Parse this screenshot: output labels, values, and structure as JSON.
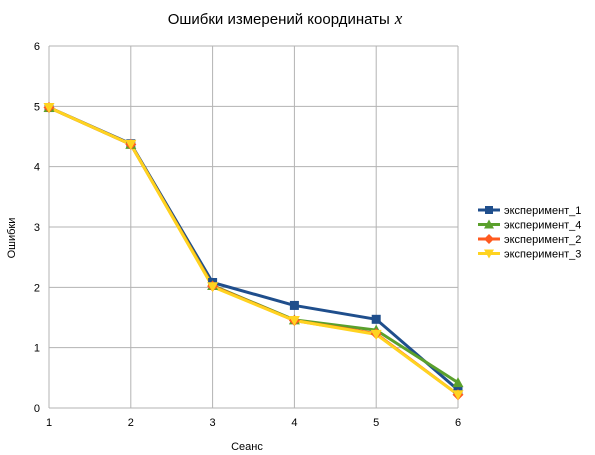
{
  "chart_data": {
    "type": "line",
    "title": "Ошибки измерений координаты",
    "title_variable": "x",
    "xlabel": "Сеанс",
    "ylabel": "Ошибки",
    "x": [
      1,
      2,
      3,
      4,
      5,
      6
    ],
    "xlim": [
      1,
      6
    ],
    "ylim": [
      0,
      6
    ],
    "yticks": [
      0,
      1,
      2,
      3,
      4,
      5,
      6
    ],
    "xticks": [
      1,
      2,
      3,
      4,
      5,
      6
    ],
    "grid": true,
    "legend_position": "right",
    "series": [
      {
        "name": "эксперимент_1",
        "color": "#1f4e8c",
        "marker": "square",
        "values": [
          4.98,
          4.38,
          2.08,
          1.7,
          1.47,
          0.3
        ]
      },
      {
        "name": "эксперимент_4",
        "color": "#5aa02c",
        "marker": "triangle",
        "values": [
          4.98,
          4.37,
          2.03,
          1.46,
          1.29,
          0.42
        ]
      },
      {
        "name": "эксперимент_2",
        "color": "#ff5a1f",
        "marker": "diamond",
        "values": [
          4.98,
          4.37,
          2.02,
          1.45,
          1.23,
          0.22
        ]
      },
      {
        "name": "эксперимент_3",
        "color": "#ffd320",
        "marker": "triangle-down",
        "values": [
          4.98,
          4.37,
          2.01,
          1.45,
          1.22,
          0.22
        ]
      }
    ]
  }
}
